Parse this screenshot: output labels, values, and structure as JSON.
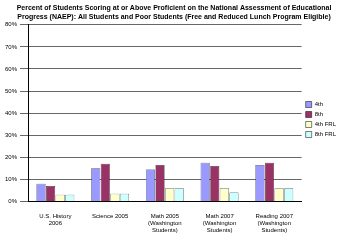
{
  "chart_data": {
    "type": "bar",
    "title": "Percent of Students Scoring at or Above Proficient on the National Assessment of Educational Progress (NAEP): All Students and Poor Students (Free and Reduced Lunch Program Eligible)",
    "categories": [
      "U.S. History 2006",
      "Science 2005",
      "Math 2005 (Washington Students)",
      "Math 2007 (Washington Students)",
      "Reading 2007 (Washington Students)"
    ],
    "series": [
      {
        "name": "4th",
        "color": "#9999ff",
        "values": [
          8,
          15,
          14.5,
          17.5,
          16.5
        ]
      },
      {
        "name": "8th",
        "color": "#993366",
        "values": [
          7,
          17,
          16.5,
          16,
          17.5
        ]
      },
      {
        "name": "4th FRL",
        "color": "#ffffcc",
        "values": [
          3,
          3.5,
          6,
          6,
          6
        ]
      },
      {
        "name": "8th FRL",
        "color": "#ccffff",
        "values": [
          3,
          3.5,
          6,
          4,
          6
        ]
      }
    ],
    "ylim": [
      0,
      80
    ],
    "yticks": [
      {
        "value": 0,
        "label": "0%"
      },
      {
        "value": 10,
        "label": "10%"
      },
      {
        "value": 20,
        "label": "20%"
      },
      {
        "value": 30,
        "label": "30%"
      },
      {
        "value": 40,
        "label": "40%"
      },
      {
        "value": 50,
        "label": "50%"
      },
      {
        "value": 60,
        "label": "60%"
      },
      {
        "value": 70,
        "label": "70%"
      },
      {
        "value": 80,
        "label": "80%"
      }
    ],
    "grid": true,
    "legend": "right"
  }
}
